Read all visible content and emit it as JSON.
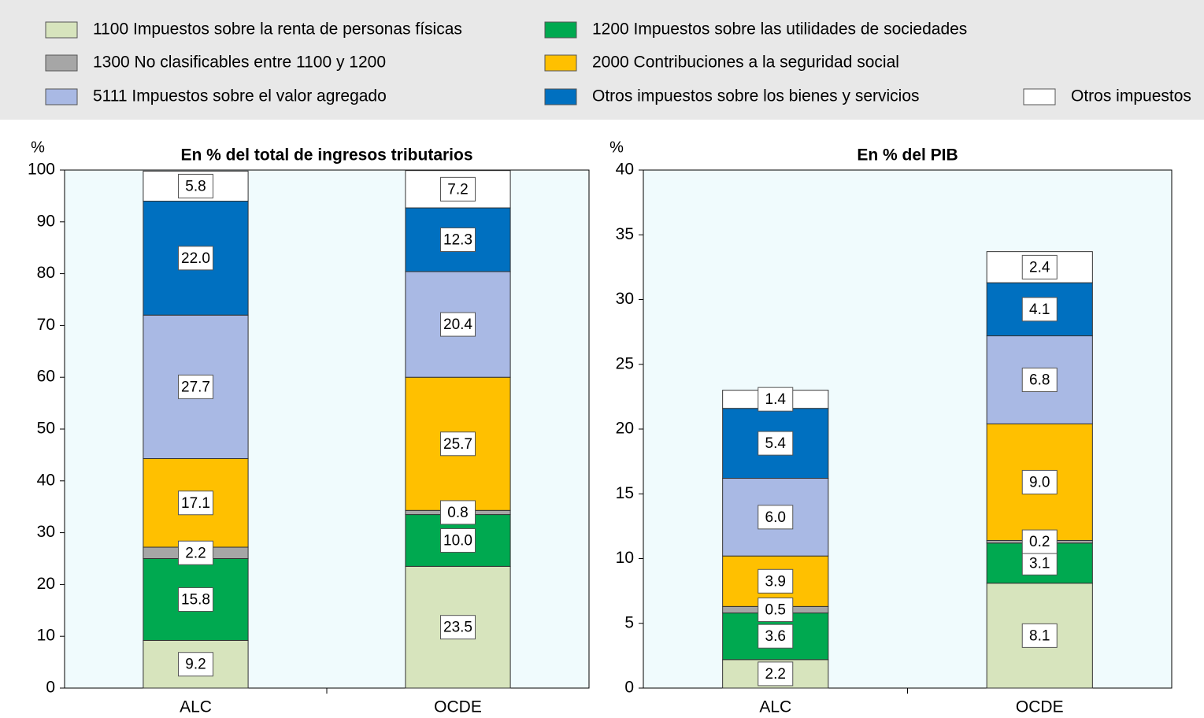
{
  "legend": [
    {
      "name": "1100 Impuestos sobre la renta de personas físicas",
      "color": "#d7e4bd"
    },
    {
      "name": "1200 Impuestos sobre las utilidades de sociedades",
      "color": "#00a950"
    },
    {
      "name": "1300 No clasificables entre 1100 y 1200",
      "color": "#a6a6a6"
    },
    {
      "name": "2000 Contribuciones a la seguridad social",
      "color": "#ffc000"
    },
    {
      "name": "5111 Impuestos sobre el valor agregado",
      "color": "#a9b9e4"
    },
    {
      "name": "Otros impuestos sobre los bienes y servicios",
      "color": "#0070c0"
    },
    {
      "name": "Otros impuestos",
      "color": "#ffffff"
    }
  ],
  "chart_data": [
    {
      "type": "stacked_bar",
      "title": "En % del total de ingresos tributarios",
      "y_label": "%",
      "categories": [
        "ALC",
        "OCDE"
      ],
      "ylim": [
        0,
        100
      ],
      "yticks": [
        0,
        10,
        20,
        30,
        40,
        50,
        60,
        70,
        80,
        90,
        100
      ],
      "series": [
        {
          "values": [
            9.2,
            23.5
          ],
          "value_labels": [
            "9.2",
            "23.5"
          ]
        },
        {
          "values": [
            15.8,
            10.0
          ],
          "value_labels": [
            "15.8",
            "10.0"
          ]
        },
        {
          "values": [
            2.2,
            0.8
          ],
          "value_labels": [
            "2.2",
            "0.8"
          ]
        },
        {
          "values": [
            17.1,
            25.7
          ],
          "value_labels": [
            "17.1",
            "25.7"
          ]
        },
        {
          "values": [
            27.7,
            20.4
          ],
          "value_labels": [
            "27.7",
            "20.4"
          ]
        },
        {
          "values": [
            22.0,
            12.3
          ],
          "value_labels": [
            "22.0",
            "12.3"
          ]
        },
        {
          "values": [
            5.8,
            7.2
          ],
          "value_labels": [
            "5.8",
            "7.2"
          ]
        }
      ]
    },
    {
      "type": "stacked_bar",
      "title": "En %  del PIB",
      "y_label": "%",
      "categories": [
        "ALC",
        "OCDE"
      ],
      "ylim": [
        0,
        40
      ],
      "yticks": [
        0,
        5,
        10,
        15,
        20,
        25,
        30,
        35,
        40
      ],
      "series": [
        {
          "values": [
            2.2,
            8.1
          ],
          "value_labels": [
            "2.2",
            "8.1"
          ]
        },
        {
          "values": [
            3.6,
            3.1
          ],
          "value_labels": [
            "3.6",
            "3.1"
          ]
        },
        {
          "values": [
            0.5,
            0.2
          ],
          "value_labels": [
            "0.5",
            "0.2"
          ]
        },
        {
          "values": [
            3.9,
            9.0
          ],
          "value_labels": [
            "3.9",
            "9.0"
          ]
        },
        {
          "values": [
            6.0,
            6.8
          ],
          "value_labels": [
            "6.0",
            "6.8"
          ]
        },
        {
          "values": [
            5.4,
            4.1
          ],
          "value_labels": [
            "5.4",
            "4.1"
          ]
        },
        {
          "values": [
            1.4,
            2.4
          ],
          "value_labels": [
            "1.4",
            "2.4"
          ]
        }
      ]
    }
  ]
}
